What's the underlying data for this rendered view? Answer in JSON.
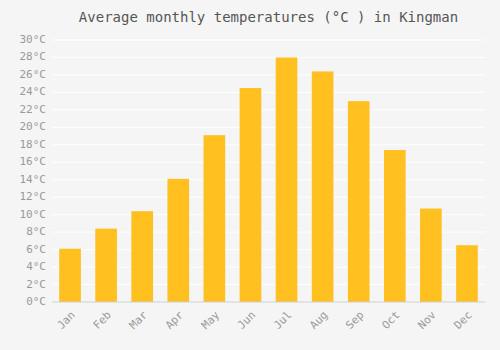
{
  "chart_data": {
    "type": "bar",
    "title": "Average monthly temperatures (°C ) in Kingman",
    "categories": [
      "Jan",
      "Feb",
      "Mar",
      "Apr",
      "May",
      "Jun",
      "Jul",
      "Aug",
      "Sep",
      "Oct",
      "Nov",
      "Dec"
    ],
    "values": [
      6.1,
      8.4,
      10.4,
      14.1,
      19.1,
      24.5,
      28.0,
      26.4,
      23.0,
      17.4,
      10.7,
      6.5
    ],
    "color": "#FFC020",
    "ylim": [
      0,
      30
    ],
    "yticks": [
      {
        "value": 0,
        "label": "0°C"
      },
      {
        "value": 2,
        "label": "2°C"
      },
      {
        "value": 4,
        "label": "4°C"
      },
      {
        "value": 6,
        "label": "6°C"
      },
      {
        "value": 8,
        "label": "8°C"
      },
      {
        "value": 10,
        "label": "10°C"
      },
      {
        "value": 12,
        "label": "12°C"
      },
      {
        "value": 14,
        "label": "14°C"
      },
      {
        "value": 16,
        "label": "16°C"
      },
      {
        "value": 18,
        "label": "18°C"
      },
      {
        "value": 20,
        "label": "20°C"
      },
      {
        "value": 22,
        "label": "22°C"
      },
      {
        "value": 24,
        "label": "24°C"
      },
      {
        "value": 26,
        "label": "26°C"
      },
      {
        "value": 28,
        "label": "28°C"
      },
      {
        "value": 30,
        "label": "30°C"
      }
    ],
    "grid": true
  }
}
